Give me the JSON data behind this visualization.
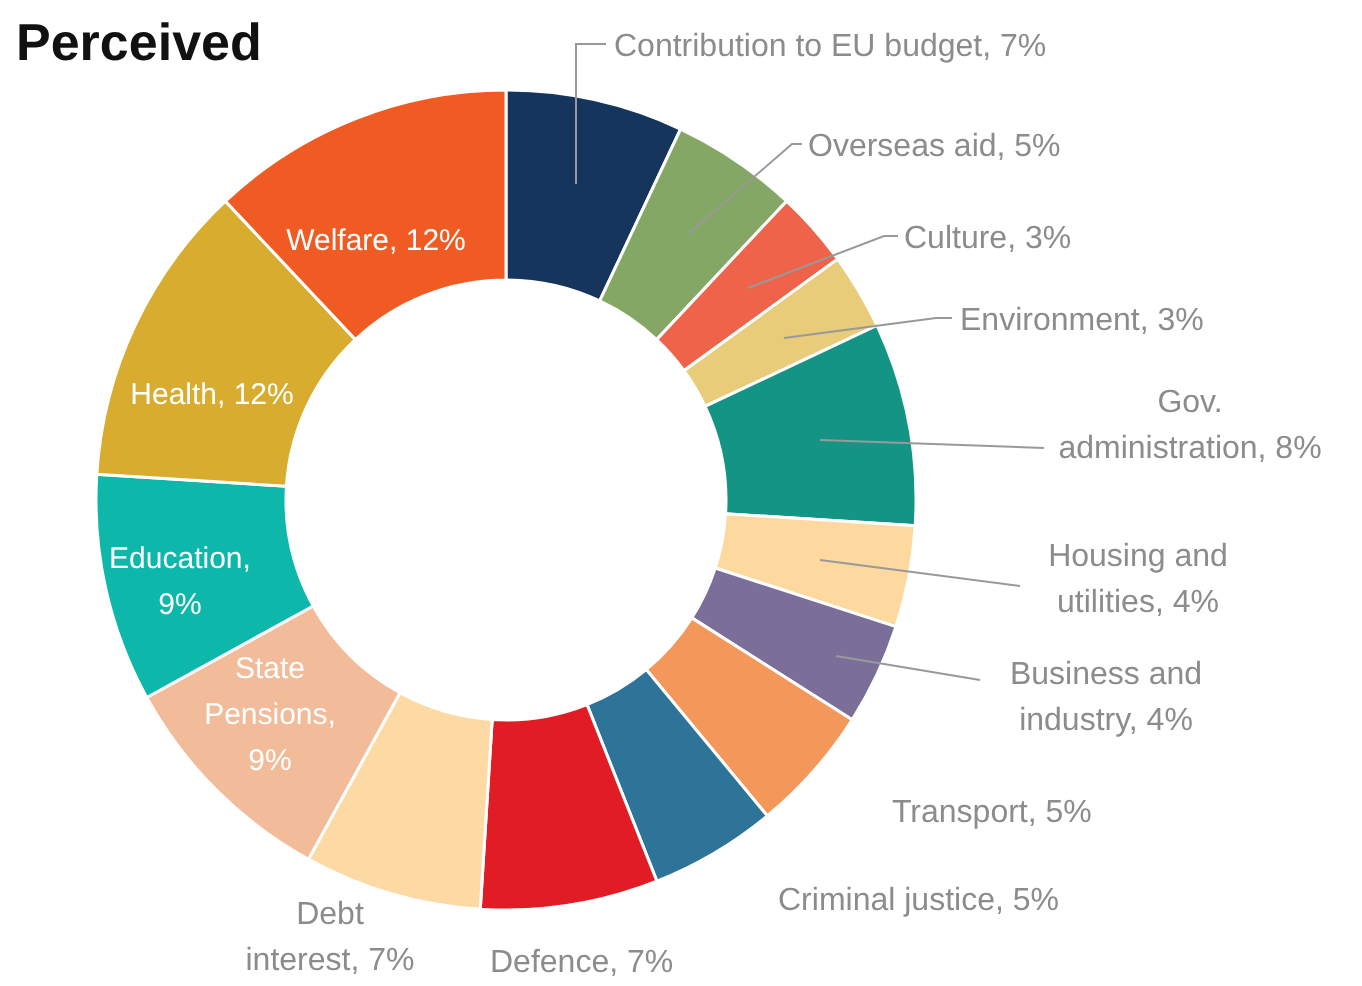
{
  "chart_data": {
    "type": "donut",
    "title": "Perceived",
    "categories": [
      "Contribution to EU budget",
      "Overseas aid",
      "Culture",
      "Environment",
      "Gov. administration",
      "Housing and utilities",
      "Business and industry",
      "Transport",
      "Criminal justice",
      "Defence",
      "Debt interest",
      "State Pensions",
      "Education",
      "Health",
      "Welfare"
    ],
    "values": [
      7,
      5,
      3,
      3,
      8,
      4,
      4,
      5,
      5,
      7,
      7,
      9,
      9,
      12,
      12
    ],
    "value_labels": [
      ", 7%",
      ", 5%",
      ", 3%",
      ", 3%",
      ", 8%",
      ", 4%",
      ", 4%",
      ", 5%",
      ", 5%",
      ", 7%",
      ", 7%",
      ", 9%",
      ", 9%",
      ", 12%",
      ", 12%"
    ],
    "colors": [
      "#16355c",
      "#84a765",
      "#ef634a",
      "#e8cc7a",
      "#149484",
      "#fdd89f",
      "#7b6f99",
      "#f4975a",
      "#2e7398",
      "#e21c24",
      "#fdd9a3",
      "#f2bc9a",
      "#0db8aa",
      "#d8ac2e",
      "#ef5b22"
    ]
  }
}
